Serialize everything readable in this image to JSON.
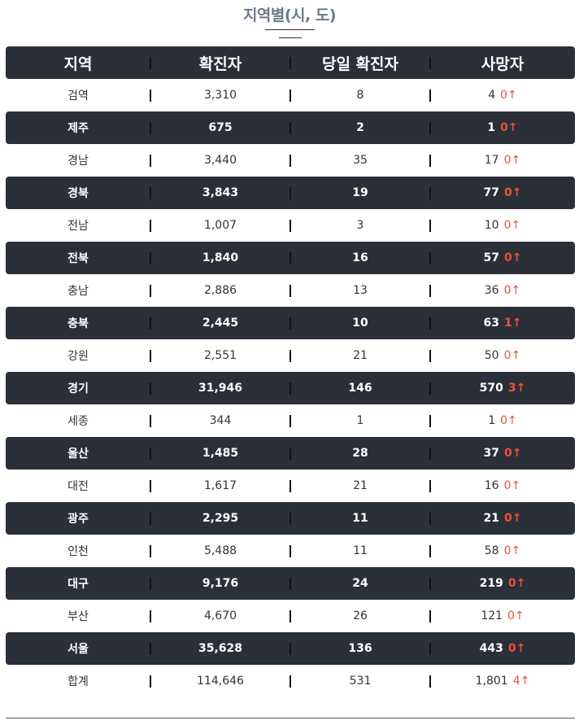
{
  "title": "지역별(시, 도)",
  "headers": [
    "지역",
    "확진자",
    "당일 확진자",
    "사망자"
  ],
  "rows": [
    {
      "region": "검역",
      "confirmed": "3,310",
      "today": "8",
      "deaths": "4",
      "delta": "0↑"
    },
    {
      "region": "제주",
      "confirmed": "675",
      "today": "2",
      "deaths": "1",
      "delta": "0↑"
    },
    {
      "region": "경남",
      "confirmed": "3,440",
      "today": "35",
      "deaths": "17",
      "delta": "0↑"
    },
    {
      "region": "경북",
      "confirmed": "3,843",
      "today": "19",
      "deaths": "77",
      "delta": "0↑"
    },
    {
      "region": "전남",
      "confirmed": "1,007",
      "today": "3",
      "deaths": "10",
      "delta": "0↑"
    },
    {
      "region": "전북",
      "confirmed": "1,840",
      "today": "16",
      "deaths": "57",
      "delta": "0↑"
    },
    {
      "region": "충남",
      "confirmed": "2,886",
      "today": "13",
      "deaths": "36",
      "delta": "0↑"
    },
    {
      "region": "충북",
      "confirmed": "2,445",
      "today": "10",
      "deaths": "63",
      "delta": "1↑"
    },
    {
      "region": "강원",
      "confirmed": "2,551",
      "today": "21",
      "deaths": "50",
      "delta": "0↑"
    },
    {
      "region": "경기",
      "confirmed": "31,946",
      "today": "146",
      "deaths": "570",
      "delta": "3↑"
    },
    {
      "region": "세종",
      "confirmed": "344",
      "today": "1",
      "deaths": "1",
      "delta": "0↑"
    },
    {
      "region": "울산",
      "confirmed": "1,485",
      "today": "28",
      "deaths": "37",
      "delta": "0↑"
    },
    {
      "region": "대전",
      "confirmed": "1,617",
      "today": "21",
      "deaths": "16",
      "delta": "0↑"
    },
    {
      "region": "광주",
      "confirmed": "2,295",
      "today": "11",
      "deaths": "21",
      "delta": "0↑"
    },
    {
      "region": "인천",
      "confirmed": "5,488",
      "today": "11",
      "deaths": "58",
      "delta": "0↑"
    },
    {
      "region": "대구",
      "confirmed": "9,176",
      "today": "24",
      "deaths": "219",
      "delta": "0↑"
    },
    {
      "region": "부산",
      "confirmed": "4,670",
      "today": "26",
      "deaths": "121",
      "delta": "0↑"
    },
    {
      "region": "서울",
      "confirmed": "35,628",
      "today": "136",
      "deaths": "443",
      "delta": "0↑"
    },
    {
      "region": "합계",
      "confirmed": "114,646",
      "today": "531",
      "deaths": "1,801",
      "delta": "4↑"
    }
  ],
  "colors": {
    "dark_row": "#2b2f38",
    "delta": "#e8533a",
    "title": "#6d7a8e"
  }
}
